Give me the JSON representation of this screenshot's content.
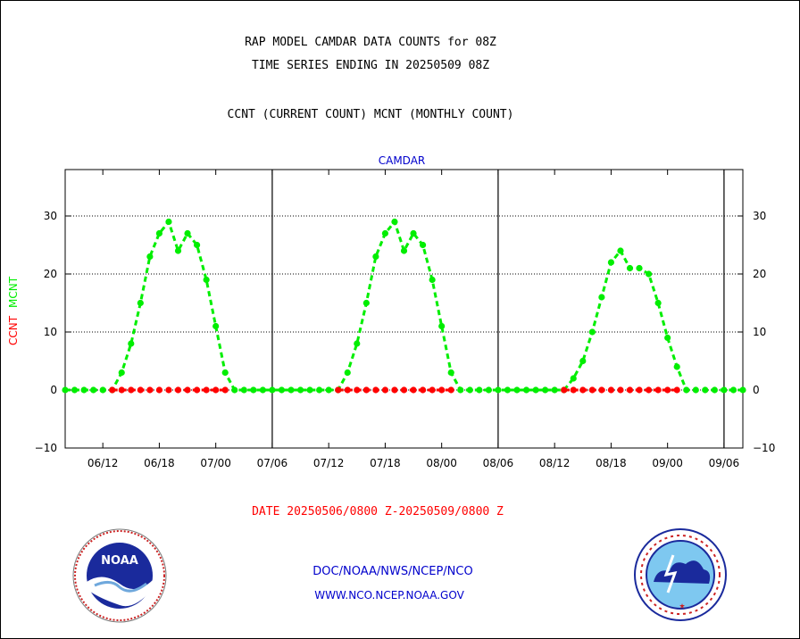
{
  "header": {
    "line1": "RAP MODEL CAMDAR DATA COUNTS for 08Z",
    "line2": "TIME SERIES ENDING IN 20250509 08Z",
    "line3": "CCNT (CURRENT COUNT) MCNT (MONTHLY COUNT)"
  },
  "footer": {
    "date_range": "DATE 20250506/0800 Z-20250509/0800 Z",
    "org": "DOC/NOAA/NWS/NCEP/NCO",
    "website": "WWW.NCO.NCEP.NOAA.GOV"
  },
  "logos": {
    "left": {
      "icon": "noaa-logo",
      "text": "NOAA"
    },
    "right": {
      "icon": "national-weather-service-logo"
    }
  },
  "colors": {
    "ccnt": "#ff0000",
    "mcnt": "#00ee00",
    "title_blue": "#0000cc"
  },
  "chart_data": {
    "type": "line",
    "title": "CAMDAR",
    "ylabel_parts": [
      "CCNT",
      "MCNT"
    ],
    "ylim": [
      -10,
      38
    ],
    "yticks": [
      -10,
      0,
      10,
      20,
      30
    ],
    "ygrid": [
      0,
      10,
      20,
      30
    ],
    "xlim": [
      0,
      72
    ],
    "xticks": [
      {
        "x": 4,
        "label": "06/12"
      },
      {
        "x": 10,
        "label": "06/18"
      },
      {
        "x": 16,
        "label": "07/00"
      },
      {
        "x": 22,
        "label": "07/06"
      },
      {
        "x": 28,
        "label": "07/12"
      },
      {
        "x": 34,
        "label": "07/18"
      },
      {
        "x": 40,
        "label": "08/00"
      },
      {
        "x": 46,
        "label": "08/06"
      },
      {
        "x": 52,
        "label": "08/12"
      },
      {
        "x": 58,
        "label": "08/18"
      },
      {
        "x": 64,
        "label": "09/00"
      },
      {
        "x": 70,
        "label": "09/06"
      }
    ],
    "day_separators": [
      22,
      46,
      70
    ],
    "series": [
      {
        "name": "CCNT",
        "values": [
          0,
          0,
          0,
          0,
          0,
          0,
          0,
          0,
          0,
          0,
          0,
          0,
          0,
          0,
          0,
          0,
          0,
          0,
          0,
          0,
          0,
          0,
          0,
          0,
          0,
          0,
          0,
          0,
          0,
          0,
          0,
          0,
          0,
          0,
          0,
          0,
          0,
          0,
          0,
          0,
          0,
          0,
          0,
          0,
          0,
          0,
          0,
          0,
          0,
          0,
          0,
          0,
          0,
          0,
          0,
          0,
          0,
          0,
          0,
          0,
          0,
          0,
          0,
          0,
          0,
          0,
          0,
          0,
          0,
          0,
          0,
          0,
          0
        ],
        "red_ranges": [
          [
            5,
            17
          ],
          [
            29,
            41
          ],
          [
            53,
            65
          ]
        ]
      },
      {
        "name": "MCNT",
        "values": [
          0,
          0,
          0,
          0,
          0,
          0,
          3,
          8,
          15,
          23,
          27,
          29,
          24,
          27,
          25,
          19,
          11,
          3,
          0,
          0,
          0,
          0,
          0,
          0,
          0,
          0,
          0,
          0,
          0,
          0,
          3,
          8,
          15,
          23,
          27,
          29,
          24,
          27,
          25,
          19,
          11,
          3,
          0,
          0,
          0,
          0,
          0,
          0,
          0,
          0,
          0,
          0,
          0,
          0,
          2,
          5,
          10,
          16,
          22,
          24,
          21,
          21,
          20,
          15,
          9,
          4,
          0,
          0,
          0,
          0,
          0,
          0,
          0
        ]
      }
    ]
  }
}
